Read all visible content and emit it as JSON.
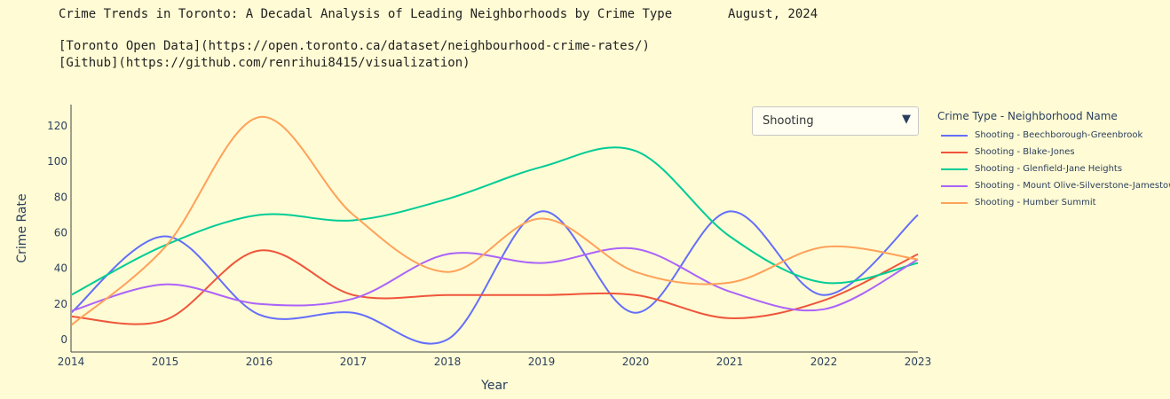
{
  "header": {
    "title": "Crime Trends in Toronto: A Decadal Analysis of Leading Neighborhoods by Crime Type",
    "date": "August, 2024",
    "links": [
      "[Toronto Open Data](https://open.toronto.ca/dataset/neighbourhood-crime-rates/)",
      "[Github](https://github.com/renrihui8415/visualization)"
    ]
  },
  "dropdown": {
    "selected": "Shooting",
    "arrow_icon": "triangle-down-icon"
  },
  "legend": {
    "title": "Crime Type - Neighborhood Name"
  },
  "chart_data": {
    "type": "line",
    "title": "",
    "xlabel": "Year",
    "ylabel": "Crime Rate",
    "xlim": [
      2014,
      2023
    ],
    "ylim": [
      -7,
      132
    ],
    "x_ticks": [
      "2014",
      "2015",
      "2016",
      "2017",
      "2018",
      "2019",
      "2020",
      "2021",
      "2022",
      "2023"
    ],
    "y_ticks": [
      "0",
      "20",
      "40",
      "60",
      "80",
      "100",
      "120"
    ],
    "x": [
      2014,
      2015,
      2016,
      2017,
      2018,
      2019,
      2020,
      2021,
      2022,
      2023
    ],
    "grid": false,
    "legend_position": "right",
    "series": [
      {
        "name": "Shooting - Beechborough-Greenbrook",
        "color": "#636efa",
        "values": [
          15,
          58,
          14,
          15,
          0,
          72,
          15,
          72,
          25,
          70
        ]
      },
      {
        "name": "Shooting - Blake-Jones",
        "color": "#ef553b",
        "values": [
          13,
          11,
          50,
          25,
          25,
          25,
          25,
          12,
          22,
          48
        ]
      },
      {
        "name": "Shooting - Glenfield-Jane Heights",
        "color": "#00cc96",
        "values": [
          25,
          53,
          70,
          67,
          79,
          97,
          106,
          58,
          32,
          43
        ]
      },
      {
        "name": "Shooting - Mount Olive-Silverstone-Jamestown",
        "color": "#ab63fa",
        "values": [
          16,
          31,
          20,
          23,
          48,
          43,
          51,
          27,
          17,
          45
        ]
      },
      {
        "name": "Shooting - Humber Summit",
        "color": "#ffa15a",
        "values": [
          8,
          52,
          125,
          70,
          38,
          68,
          38,
          32,
          52,
          45
        ]
      }
    ]
  }
}
